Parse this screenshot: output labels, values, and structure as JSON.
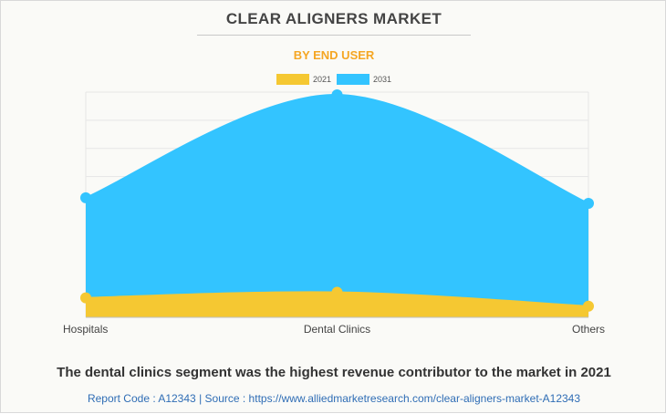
{
  "header": {
    "title": "CLEAR ALIGNERS MARKET",
    "subtitle": "BY END USER"
  },
  "footer": {
    "headline": "The dental clinics segment was the highest revenue contributor to the market in 2021",
    "report_code_label": "Report Code : A12343",
    "separator": "|",
    "source_label": "Source : https://www.alliedmarketresearch.com/clear-aligners-market-A12343"
  },
  "colors": {
    "series_2021": "#f5c832",
    "series_2031": "#33c4ff",
    "title": "#444444",
    "subtitle": "#f5a623",
    "source_link": "#2f6db5"
  },
  "chart_data": {
    "type": "area",
    "categories": [
      "Hospitals",
      "Dental Clinics",
      "Others"
    ],
    "series": [
      {
        "name": "2021",
        "values": [
          0.7,
          0.9,
          0.4
        ]
      },
      {
        "name": "2031",
        "values": [
          4.3,
          8.0,
          4.1
        ]
      }
    ],
    "ylim": [
      0,
      8.1
    ],
    "grid": true,
    "smooth": true,
    "legend_position": "top-center",
    "title": "CLEAR ALIGNERS MARKET",
    "subtitle": "BY END USER",
    "xlabel": "",
    "ylabel": ""
  }
}
